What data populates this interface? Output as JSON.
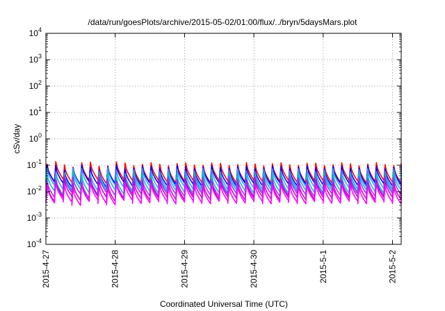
{
  "chart_data": {
    "type": "line",
    "title": "/data/run/goesPlots/archive/2015-05-02/01:00/flux/../bryn/5daysMars.plot",
    "xlabel": "Coordinated Universal Time (UTC)",
    "ylabel": "cSv/day",
    "yscale": "log",
    "ylim": [
      0.0001,
      10000
    ],
    "xlim": [
      "2015-04-27",
      "2015-05-02 03:00"
    ],
    "grid": true,
    "x_ticks": [
      "2015-4-27",
      "2015-4-28",
      "2015-4-29",
      "2015-4-30",
      "2015-5-1",
      "2015-5-2"
    ],
    "y_ticks": [
      {
        "base": "10",
        "exp": "4"
      },
      {
        "base": "10",
        "exp": "3"
      },
      {
        "base": "10",
        "exp": "2"
      },
      {
        "base": "10",
        "exp": "1"
      },
      {
        "base": "10",
        "exp": "0"
      },
      {
        "base": "10",
        "exp": "-1"
      },
      {
        "base": "10",
        "exp": "-2"
      },
      {
        "base": "10",
        "exp": "-3"
      },
      {
        "base": "10",
        "exp": "-4"
      }
    ],
    "sawtooth_period_hours": 3,
    "series": [
      {
        "color": "#ff0000",
        "peak": 0.11,
        "trough": 0.024
      },
      {
        "color": "#0000ff",
        "peak": 0.085,
        "trough": 0.019
      },
      {
        "color": "#3399ff",
        "peak": 0.065,
        "trough": 0.014
      },
      {
        "color": "#00c0c0",
        "peak": 0.045,
        "trough": 0.01
      },
      {
        "color": "#9933ff",
        "peak": 0.033,
        "trough": 0.0075
      },
      {
        "color": "#cc00cc",
        "peak": 0.025,
        "trough": 0.0055
      },
      {
        "color": "#ff00ff",
        "peak": 0.018,
        "trough": 0.004
      }
    ]
  }
}
